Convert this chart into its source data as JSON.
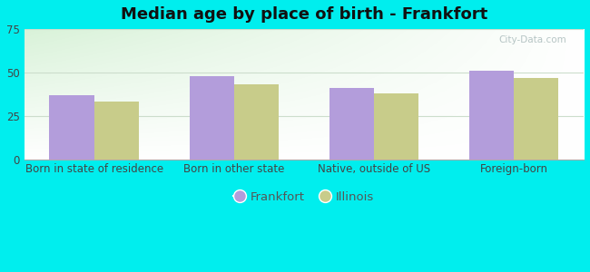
{
  "title": "Median age by place of birth - Frankfort",
  "categories": [
    "Born in state of residence",
    "Born in other state",
    "Native, outside of US",
    "Foreign-born"
  ],
  "frankfort_values": [
    37,
    48,
    41,
    51
  ],
  "illinois_values": [
    33,
    43,
    38,
    47
  ],
  "frankfort_color": "#b39ddb",
  "illinois_color": "#c8cc8a",
  "ylim": [
    0,
    75
  ],
  "yticks": [
    0,
    25,
    50,
    75
  ],
  "bar_width": 0.32,
  "background_color": "#00eeee",
  "legend_labels": [
    "Frankfort",
    "Illinois"
  ],
  "title_fontsize": 13,
  "tick_fontsize": 8.5,
  "legend_fontsize": 9.5,
  "watermark": "City-Data.com",
  "grid_color": "#ccddcc",
  "title_color": "#111111"
}
